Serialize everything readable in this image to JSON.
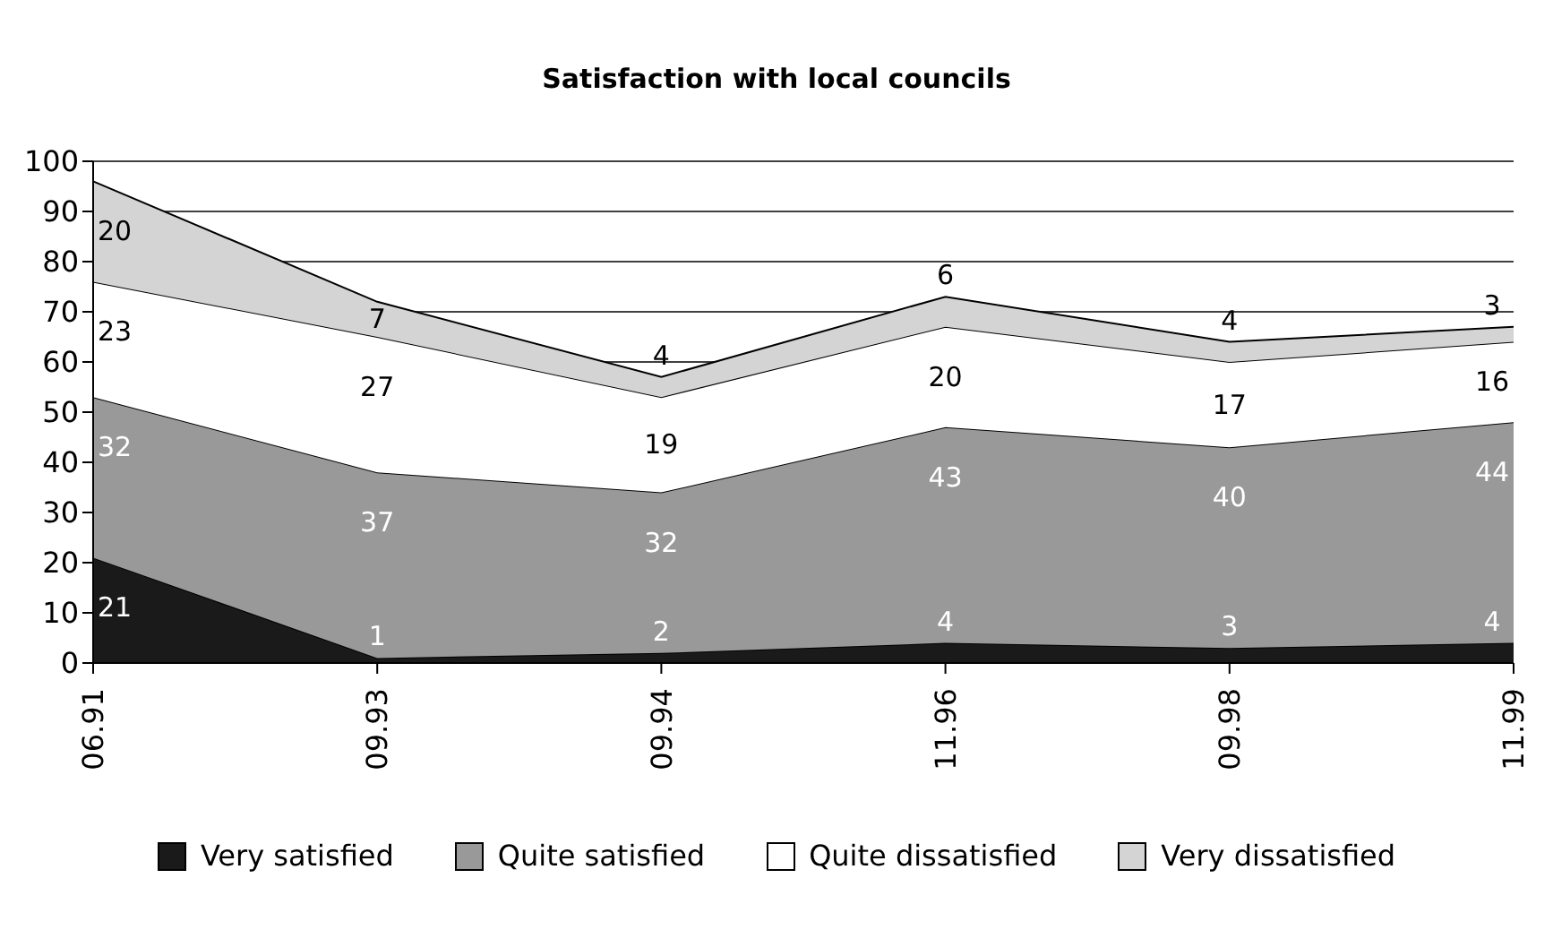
{
  "chart_data": {
    "type": "area",
    "title": "Satisfaction with local councils",
    "categories": [
      "06.91",
      "09.93",
      "09.94",
      "11.96",
      "09.98",
      "11.99"
    ],
    "stacked": true,
    "series": [
      {
        "name": "Very satisfied",
        "color": "#1a1a1a",
        "values": [
          21,
          1,
          2,
          4,
          3,
          4
        ]
      },
      {
        "name": "Quite satisfied",
        "color": "#999999",
        "values": [
          32,
          37,
          32,
          43,
          40,
          44
        ]
      },
      {
        "name": "Quite dissatisfied",
        "color": "#ffffff",
        "values": [
          23,
          27,
          19,
          20,
          17,
          16
        ]
      },
      {
        "name": "Very dissatisfied",
        "color": "#d4d4d4",
        "values": [
          20,
          7,
          4,
          6,
          4,
          3
        ]
      }
    ],
    "ylim": [
      0,
      100
    ],
    "yticks": [
      0,
      10,
      20,
      30,
      40,
      50,
      60,
      70,
      80,
      90,
      100
    ],
    "grid": "y",
    "legend": "bottom",
    "data_labels": true
  }
}
